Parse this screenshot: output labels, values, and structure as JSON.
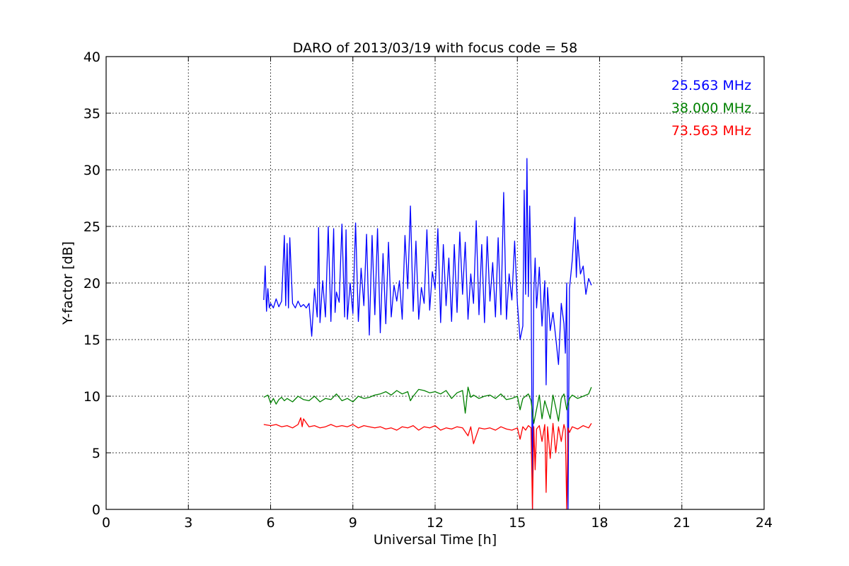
{
  "chart_data": {
    "type": "line",
    "title": "DARO of 2013/03/19 with focus code = 58",
    "xlabel": "Universal Time [h]",
    "ylabel": "Y-factor [dB]",
    "xlim": [
      0,
      24
    ],
    "ylim": [
      0,
      40
    ],
    "xticks": [
      0,
      3,
      6,
      9,
      12,
      15,
      18,
      21,
      24
    ],
    "yticks": [
      0,
      5,
      10,
      15,
      20,
      25,
      30,
      35,
      40
    ],
    "xtick_labels": [
      "0",
      "3",
      "6",
      "9",
      "12",
      "15",
      "18",
      "21",
      "24"
    ],
    "ytick_labels": [
      "0",
      "5",
      "10",
      "15",
      "20",
      "25",
      "30",
      "35",
      "40"
    ],
    "grid": true,
    "legend_position": "top-right",
    "series": [
      {
        "name": "25.563 MHz",
        "color": "#0000ff",
        "x": [
          5.75,
          5.8,
          5.85,
          5.9,
          5.95,
          6.0,
          6.1,
          6.2,
          6.3,
          6.4,
          6.5,
          6.55,
          6.6,
          6.65,
          6.7,
          6.8,
          6.9,
          7.0,
          7.1,
          7.2,
          7.3,
          7.4,
          7.5,
          7.6,
          7.7,
          7.75,
          7.8,
          7.9,
          8.0,
          8.1,
          8.2,
          8.3,
          8.35,
          8.4,
          8.5,
          8.6,
          8.7,
          8.75,
          8.8,
          8.9,
          9.0,
          9.1,
          9.2,
          9.3,
          9.4,
          9.5,
          9.6,
          9.7,
          9.8,
          9.9,
          10.0,
          10.1,
          10.2,
          10.3,
          10.4,
          10.5,
          10.6,
          10.7,
          10.8,
          10.9,
          11.0,
          11.1,
          11.2,
          11.3,
          11.4,
          11.5,
          11.6,
          11.7,
          11.8,
          11.9,
          12.0,
          12.1,
          12.2,
          12.3,
          12.4,
          12.5,
          12.6,
          12.7,
          12.8,
          12.9,
          13.0,
          13.1,
          13.2,
          13.3,
          13.4,
          13.5,
          13.6,
          13.7,
          13.8,
          13.9,
          14.0,
          14.1,
          14.2,
          14.3,
          14.4,
          14.5,
          14.6,
          14.7,
          14.8,
          14.9,
          15.0,
          15.1,
          15.2,
          15.25,
          15.3,
          15.35,
          15.4,
          15.45,
          15.5,
          15.55,
          15.6,
          15.65,
          15.7,
          15.8,
          15.9,
          16.0,
          16.05,
          16.1,
          16.2,
          16.3,
          16.4,
          16.5,
          16.6,
          16.7,
          16.75,
          16.8,
          16.85,
          16.9,
          17.0,
          17.1,
          17.15,
          17.2,
          17.3,
          17.4,
          17.5,
          17.6,
          17.7
        ],
        "y": [
          18.5,
          21.5,
          17.5,
          19.5,
          17.8,
          18.2,
          17.8,
          18.6,
          17.9,
          18.4,
          24.2,
          18.0,
          23.5,
          17.8,
          24.0,
          18.2,
          17.8,
          18.4,
          17.9,
          18.1,
          17.8,
          18.2,
          15.3,
          19.5,
          17.0,
          24.9,
          16.5,
          20.2,
          17.0,
          25.0,
          16.6,
          24.8,
          17.4,
          19.2,
          18.3,
          25.2,
          17.0,
          24.7,
          16.8,
          20.0,
          17.3,
          25.3,
          16.6,
          21.3,
          18.0,
          24.3,
          15.4,
          24.2,
          17.2,
          24.8,
          15.6,
          22.6,
          16.4,
          23.6,
          17.0,
          19.8,
          18.4,
          20.2,
          16.8,
          24.2,
          19.5,
          26.8,
          17.5,
          23.7,
          16.8,
          19.6,
          18.2,
          24.7,
          17.6,
          21.0,
          19.5,
          24.8,
          16.5,
          23.4,
          18.0,
          22.2,
          16.6,
          23.4,
          17.4,
          24.5,
          19.0,
          23.6,
          16.8,
          20.8,
          18.2,
          25.5,
          17.2,
          23.4,
          16.5,
          24.1,
          18.4,
          21.8,
          17.0,
          24.0,
          17.2,
          28.0,
          16.8,
          20.8,
          18.5,
          23.7,
          18.2,
          15.0,
          16.2,
          28.2,
          19.0,
          31.0,
          18.8,
          26.8,
          20.8,
          0.0,
          19.2,
          22.2,
          17.8,
          21.4,
          16.2,
          20.2,
          11.0,
          19.6,
          15.8,
          17.4,
          15.2,
          12.8,
          18.2,
          16.4,
          13.8,
          20.0,
          0.0,
          19.5,
          22.0,
          25.8,
          20.5,
          23.8,
          20.8,
          21.5,
          19.0,
          20.4,
          19.8
        ]
      },
      {
        "name": "38.000 MHz",
        "color": "#008000",
        "x": [
          5.75,
          5.9,
          6.0,
          6.1,
          6.2,
          6.3,
          6.4,
          6.5,
          6.6,
          6.8,
          7.0,
          7.2,
          7.4,
          7.6,
          7.8,
          8.0,
          8.2,
          8.4,
          8.6,
          8.8,
          9.0,
          9.2,
          9.4,
          9.6,
          9.8,
          10.0,
          10.2,
          10.4,
          10.6,
          10.8,
          11.0,
          11.1,
          11.2,
          11.4,
          11.6,
          11.8,
          12.0,
          12.2,
          12.4,
          12.6,
          12.8,
          13.0,
          13.1,
          13.2,
          13.3,
          13.4,
          13.6,
          13.8,
          14.0,
          14.2,
          14.4,
          14.6,
          14.8,
          15.0,
          15.1,
          15.2,
          15.4,
          15.5,
          15.6,
          15.8,
          15.9,
          16.0,
          16.2,
          16.3,
          16.4,
          16.5,
          16.6,
          16.7,
          16.8,
          16.9,
          17.0,
          17.2,
          17.4,
          17.6,
          17.7
        ],
        "y": [
          9.9,
          10.1,
          9.4,
          9.8,
          9.3,
          9.7,
          9.9,
          9.6,
          9.8,
          9.5,
          10.0,
          9.7,
          9.6,
          10.0,
          9.5,
          9.8,
          9.7,
          10.2,
          9.6,
          9.8,
          9.5,
          10.0,
          9.8,
          9.9,
          10.1,
          10.2,
          10.4,
          10.1,
          10.5,
          10.2,
          10.4,
          9.6,
          10.0,
          10.6,
          10.5,
          10.3,
          10.4,
          10.2,
          10.5,
          9.8,
          10.3,
          10.5,
          8.5,
          10.8,
          9.9,
          10.1,
          9.8,
          10.0,
          10.1,
          9.8,
          10.2,
          9.7,
          9.8,
          10.0,
          8.8,
          9.8,
          10.2,
          9.6,
          7.6,
          10.1,
          8.0,
          9.6,
          8.0,
          10.1,
          9.0,
          7.8,
          9.8,
          10.2,
          8.8,
          9.8,
          10.1,
          9.8,
          10.0,
          10.2,
          10.8
        ]
      },
      {
        "name": "73.563 MHz",
        "color": "#ff0000",
        "x": [
          5.75,
          6.0,
          6.2,
          6.4,
          6.6,
          6.8,
          7.0,
          7.1,
          7.15,
          7.2,
          7.4,
          7.6,
          7.8,
          8.0,
          8.2,
          8.4,
          8.6,
          8.8,
          9.0,
          9.2,
          9.4,
          9.6,
          9.8,
          10.0,
          10.2,
          10.4,
          10.6,
          10.8,
          11.0,
          11.2,
          11.4,
          11.6,
          11.8,
          12.0,
          12.2,
          12.4,
          12.6,
          12.8,
          13.0,
          13.2,
          13.3,
          13.4,
          13.6,
          13.8,
          14.0,
          14.2,
          14.4,
          14.6,
          14.8,
          15.0,
          15.1,
          15.2,
          15.3,
          15.4,
          15.5,
          15.55,
          15.6,
          15.65,
          15.7,
          15.8,
          15.9,
          16.0,
          16.05,
          16.1,
          16.2,
          16.3,
          16.4,
          16.5,
          16.6,
          16.7,
          16.75,
          16.8,
          16.85,
          16.9,
          17.0,
          17.2,
          17.4,
          17.6,
          17.7
        ],
        "y": [
          7.5,
          7.4,
          7.5,
          7.3,
          7.4,
          7.2,
          7.5,
          8.1,
          7.3,
          8.0,
          7.3,
          7.4,
          7.2,
          7.3,
          7.5,
          7.3,
          7.4,
          7.3,
          7.5,
          7.2,
          7.4,
          7.3,
          7.2,
          7.3,
          7.1,
          7.2,
          7.0,
          7.3,
          7.2,
          7.4,
          7.0,
          7.3,
          7.2,
          7.4,
          7.0,
          7.2,
          7.1,
          7.3,
          7.2,
          6.5,
          7.3,
          5.8,
          7.2,
          7.1,
          7.2,
          7.0,
          7.3,
          7.1,
          7.0,
          7.2,
          6.2,
          7.3,
          7.0,
          7.4,
          7.2,
          0.0,
          7.3,
          3.5,
          7.1,
          7.4,
          6.0,
          7.5,
          1.5,
          7.3,
          4.5,
          7.6,
          5.0,
          7.3,
          6.0,
          7.5,
          7.0,
          0.0,
          7.2,
          6.8,
          7.3,
          7.1,
          7.4,
          7.2,
          7.6
        ]
      }
    ]
  }
}
